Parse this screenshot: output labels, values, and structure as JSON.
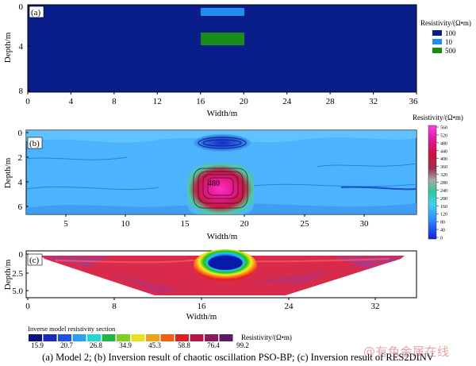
{
  "panel_a": {
    "label": "(a)",
    "ylabel": "Depth/m",
    "xlabel": "Width/m",
    "x_ticks": [
      "0",
      "4",
      "8",
      "12",
      "16",
      "20",
      "24",
      "28",
      "32",
      "36"
    ],
    "y_ticks": [
      "0",
      "4",
      "8"
    ],
    "legend_title": "Resistivity/(Ω•m)",
    "legend": [
      {
        "label": "100",
        "color": "#0a1e8a"
      },
      {
        "label": "10",
        "color": "#1e8ff0"
      },
      {
        "label": "500",
        "color": "#1a8a1a"
      }
    ]
  },
  "panel_b": {
    "label": "(b)",
    "ylabel": "Depth/m",
    "xlabel": "Width/m",
    "x_ticks": [
      "5",
      "10",
      "15",
      "20",
      "25",
      "30"
    ],
    "y_ticks": [
      "0",
      "2",
      "4",
      "6"
    ],
    "colorbar_title": "Resistivity/(Ω•m)",
    "colorbar_ticks": [
      "560",
      "520",
      "480",
      "440",
      "400",
      "360",
      "320",
      "280",
      "240",
      "200",
      "160",
      "120",
      "80",
      "40",
      "0"
    ],
    "contour_label": "480"
  },
  "panel_c": {
    "label": "(c)",
    "ylabel": "Depth/m",
    "xlabel": "Width/m",
    "x_ticks": [
      "0",
      "8",
      "16",
      "24",
      "32"
    ],
    "y_ticks": [
      "0",
      "2.5",
      "5.0"
    ],
    "colorbar_title": "Inverse model resistivity section",
    "colorbar_unit": "Resistivity/(Ω•m)",
    "colorbar_values": [
      "15.9",
      "20.7",
      "26.8",
      "34.9",
      "45.3",
      "58.8",
      "76.4",
      "99.2"
    ]
  },
  "caption": "(a) Model 2; (b) Inversion result of chaotic oscillation PSO-BP; (c) Inversion  result of RES2DINV",
  "watermark": "@有色金属在线"
}
